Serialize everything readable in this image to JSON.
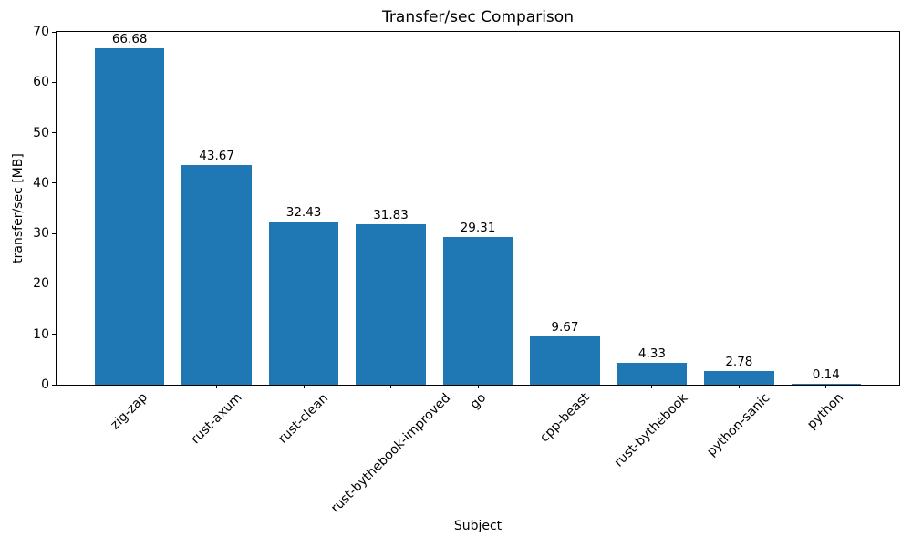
{
  "chart_data": {
    "type": "bar",
    "title": "Transfer/sec Comparison",
    "xlabel": "Subject",
    "ylabel": "transfer/sec [MB]",
    "categories": [
      "zig-zap",
      "rust-axum",
      "rust-clean",
      "rust-bythebook-improved",
      "go",
      "cpp-beast",
      "rust-bythebook",
      "python-sanic",
      "python"
    ],
    "values": [
      66.68,
      43.67,
      32.43,
      31.83,
      29.31,
      9.67,
      4.33,
      2.78,
      0.14
    ],
    "value_labels": [
      "66.68",
      "43.67",
      "32.43",
      "31.83",
      "29.31",
      "9.67",
      "4.33",
      "2.78",
      "0.14"
    ],
    "ylim": [
      0,
      70
    ],
    "yticks": [
      0,
      10,
      20,
      30,
      40,
      50,
      60,
      70
    ],
    "y_tick_labels": [
      "0",
      "10",
      "20",
      "30",
      "40",
      "50",
      "60",
      "70"
    ],
    "bar_color": "#1f77b4",
    "axis_color": "#000000",
    "text_color": "#000000",
    "background_color": "#ffffff",
    "grid": false,
    "legend": "none",
    "x_tick_label_rotation_deg": 45
  }
}
